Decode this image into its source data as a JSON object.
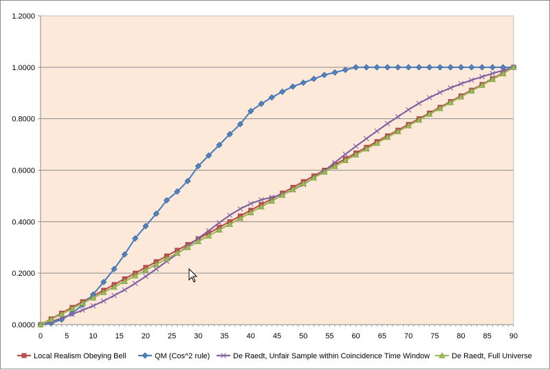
{
  "chart_data": {
    "type": "line",
    "title": "",
    "xlabel": "",
    "ylabel": "",
    "xlim": [
      0,
      90
    ],
    "ylim": [
      0,
      1.2
    ],
    "x_ticks": [
      0,
      5,
      10,
      15,
      20,
      25,
      30,
      35,
      40,
      45,
      50,
      55,
      60,
      65,
      70,
      75,
      80,
      85,
      90
    ],
    "y_ticks": [
      "0.0000",
      "0.2000",
      "0.4000",
      "0.6000",
      "0.8000",
      "1.0000",
      "1.2000"
    ],
    "grid": "horizontal",
    "plot_background": "#fde9d9",
    "legend_position": "bottom",
    "x": [
      0,
      2,
      4,
      6,
      8,
      10,
      12,
      14,
      16,
      18,
      20,
      22,
      24,
      26,
      28,
      30,
      32,
      34,
      36,
      38,
      40,
      42,
      44,
      46,
      48,
      50,
      52,
      54,
      56,
      58,
      60,
      62,
      64,
      66,
      68,
      70,
      72,
      74,
      76,
      78,
      80,
      82,
      84,
      86,
      88,
      90
    ],
    "series": [
      {
        "name": "Local Realism Obeying Bell",
        "color": "#c0504d",
        "marker": "square",
        "values": [
          0.0,
          0.0222,
          0.0444,
          0.0667,
          0.0889,
          0.1111,
          0.1333,
          0.1556,
          0.1778,
          0.2,
          0.2222,
          0.2444,
          0.2667,
          0.2889,
          0.3111,
          0.3333,
          0.3556,
          0.3778,
          0.4,
          0.4222,
          0.4444,
          0.4667,
          0.4889,
          0.5111,
          0.5333,
          0.5556,
          0.5778,
          0.6,
          0.6222,
          0.6444,
          0.6667,
          0.6889,
          0.7111,
          0.7333,
          0.7556,
          0.7778,
          0.8,
          0.8222,
          0.8444,
          0.8667,
          0.8889,
          0.9111,
          0.9333,
          0.9556,
          0.9778,
          1.0
        ]
      },
      {
        "name": "QM (Cos^2 rule)",
        "color": "#4f81bd",
        "marker": "diamond",
        "values": [
          0.0,
          0.0049,
          0.0195,
          0.0437,
          0.077,
          0.117,
          0.1654,
          0.216,
          0.273,
          0.335,
          0.383,
          0.431,
          0.483,
          0.517,
          0.558,
          0.616,
          0.657,
          0.698,
          0.74,
          0.779,
          0.83,
          0.858,
          0.883,
          0.905,
          0.925,
          0.94,
          0.955,
          0.97,
          0.98,
          0.99,
          1.0,
          1.0,
          1.0,
          1.0,
          1.0,
          1.0,
          1.0,
          1.0,
          1.0,
          1.0,
          1.0,
          1.0,
          1.0,
          1.0,
          1.0,
          1.0
        ]
      },
      {
        "name": "De Raedt, Unfair Sample within Coincidence Time Window",
        "color": "#8064a2",
        "marker": "x",
        "values": [
          0.0,
          0.011,
          0.025,
          0.04,
          0.056,
          0.073,
          0.092,
          0.113,
          0.135,
          0.16,
          0.187,
          0.216,
          0.246,
          0.275,
          0.305,
          0.335,
          0.365,
          0.396,
          0.425,
          0.45,
          0.47,
          0.485,
          0.495,
          0.505,
          0.523,
          0.545,
          0.57,
          0.598,
          0.63,
          0.662,
          0.693,
          0.723,
          0.752,
          0.781,
          0.808,
          0.835,
          0.86,
          0.882,
          0.902,
          0.92,
          0.936,
          0.95,
          0.963,
          0.976,
          0.988,
          1.0
        ]
      },
      {
        "name": "De Raedt, Full Universe",
        "color": "#9bbb59",
        "marker": "triangle",
        "values": [
          0.0,
          0.02,
          0.041,
          0.062,
          0.083,
          0.104,
          0.125,
          0.146,
          0.168,
          0.19,
          0.212,
          0.234,
          0.256,
          0.278,
          0.3,
          0.323,
          0.345,
          0.368,
          0.39,
          0.413,
          0.435,
          0.458,
          0.48,
          0.503,
          0.525,
          0.548,
          0.57,
          0.593,
          0.615,
          0.638,
          0.66,
          0.683,
          0.705,
          0.728,
          0.75,
          0.773,
          0.795,
          0.818,
          0.84,
          0.863,
          0.885,
          0.908,
          0.93,
          0.953,
          0.975,
          1.0
        ]
      }
    ]
  }
}
